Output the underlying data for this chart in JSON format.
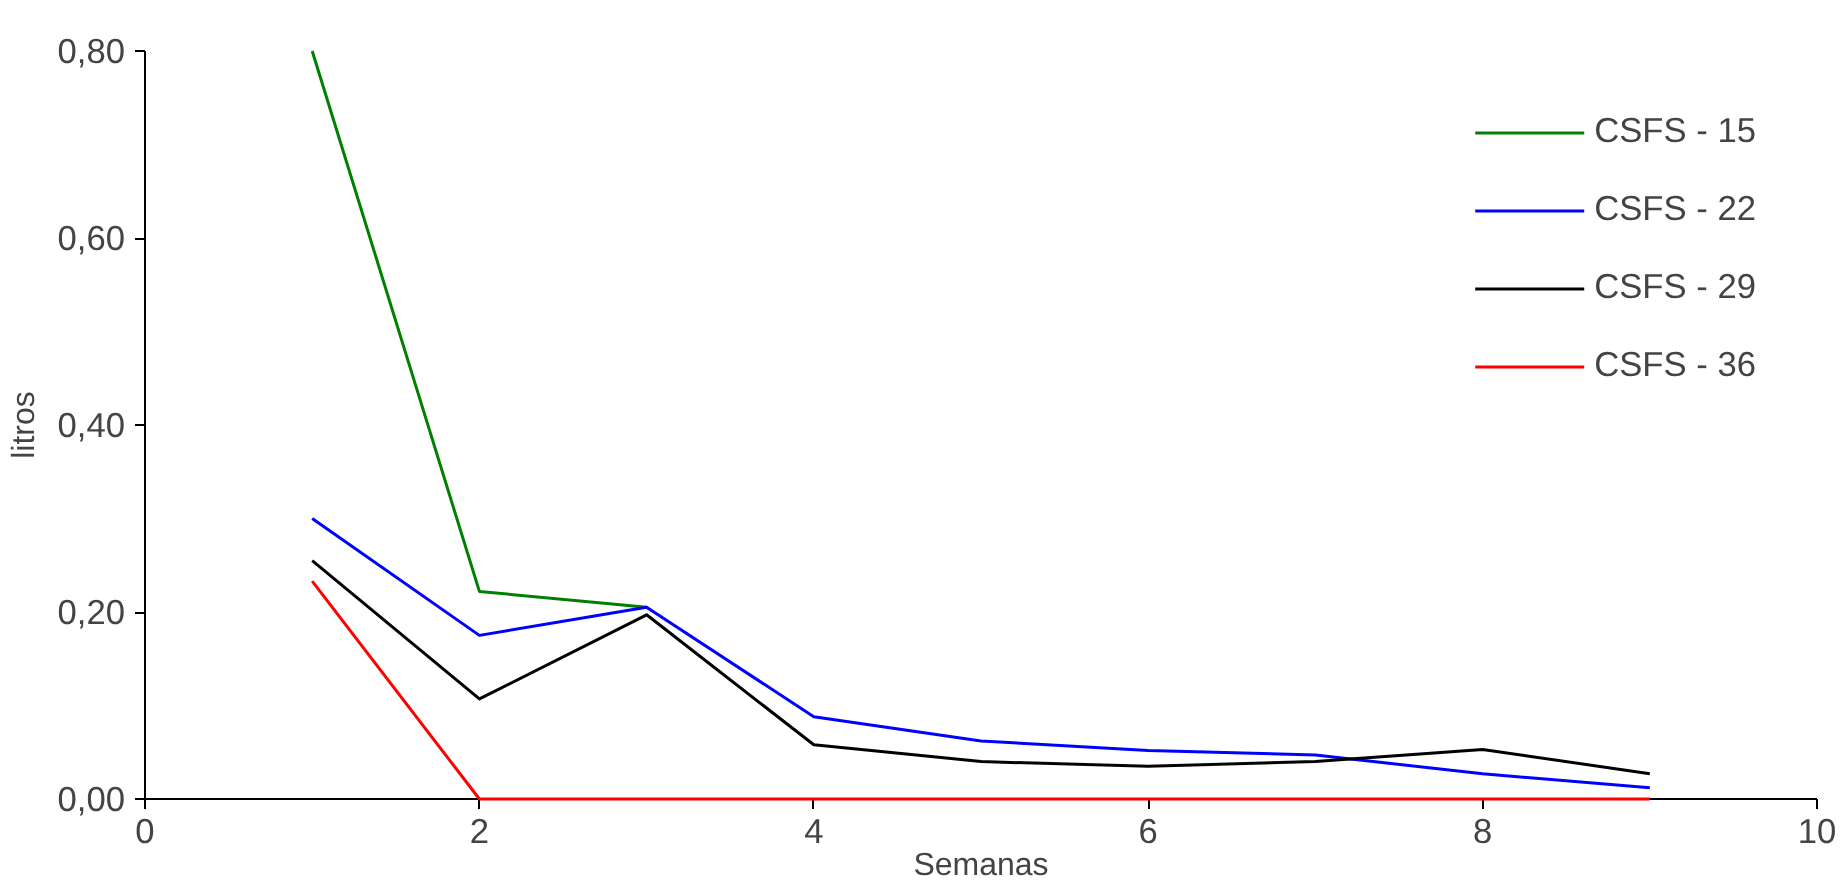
{
  "chart_data": {
    "type": "line",
    "xlabel": "Semanas",
    "ylabel": "litros",
    "x": [
      1,
      2,
      3,
      4,
      5,
      6,
      7,
      8,
      9
    ],
    "series": [
      {
        "name": "CSFS - 15",
        "color": "#008000",
        "values": [
          0.8,
          0.222,
          0.205,
          null,
          null,
          null,
          null,
          null,
          null
        ]
      },
      {
        "name": "CSFS - 22",
        "color": "#0000ff",
        "values": [
          0.3,
          0.175,
          0.205,
          0.088,
          0.062,
          0.052,
          0.047,
          0.027,
          0.012
        ]
      },
      {
        "name": "CSFS - 29",
        "color": "#000000",
        "values": [
          0.255,
          0.107,
          0.197,
          0.058,
          0.04,
          0.035,
          0.04,
          0.053,
          0.027
        ]
      },
      {
        "name": "CSFS - 36",
        "color": "#ff0000",
        "values": [
          0.233,
          0,
          0,
          0,
          0,
          0,
          0,
          0,
          0
        ]
      }
    ],
    "xlim": [
      0,
      10
    ],
    "ylim": [
      0,
      0.8
    ],
    "xticks": [
      0,
      2,
      4,
      6,
      8,
      10
    ],
    "yticks": [
      {
        "value": 0,
        "label": "0,00"
      },
      {
        "value": 0.2,
        "label": "0,20"
      },
      {
        "value": 0.4,
        "label": "0,40"
      },
      {
        "value": 0.6,
        "label": "0,60"
      },
      {
        "value": 0.8,
        "label": "0,80"
      }
    ],
    "grid": false,
    "legend": "top right",
    "marker": "none",
    "line_style": "solid"
  }
}
